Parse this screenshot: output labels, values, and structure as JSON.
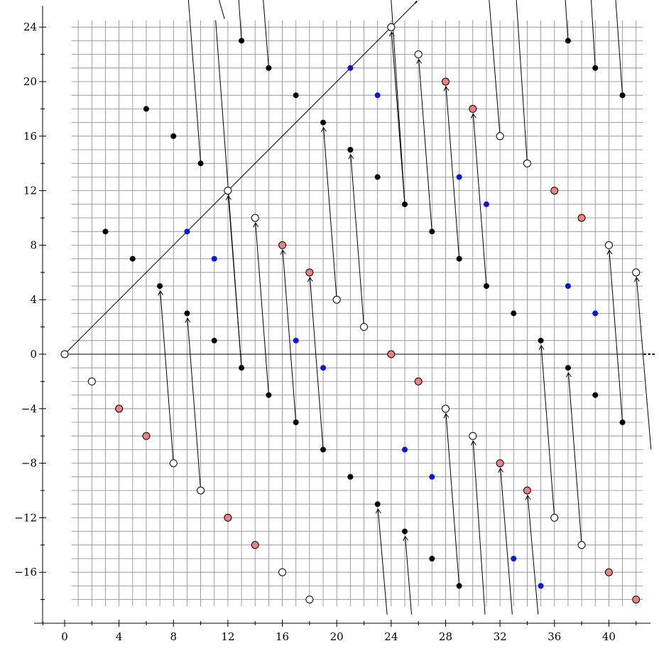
{
  "chart_data": {
    "type": "scatter",
    "title": "",
    "xlabel": "",
    "ylabel": "",
    "xlim": [
      -1.6,
      43.5
    ],
    "ylim": [
      -19.5,
      26
    ],
    "grid": true,
    "grid_x_range": [
      0.5,
      42.5
    ],
    "grid_y_range": [
      -18.5,
      24.5
    ],
    "x_ticks": [
      0,
      4,
      8,
      12,
      16,
      20,
      24,
      28,
      32,
      36,
      40
    ],
    "x_tick_labels": [
      "0",
      "4",
      "8",
      "12",
      "16",
      "20",
      "24",
      "28",
      "32",
      "36",
      "40"
    ],
    "y_ticks": [
      -16,
      -12,
      -8,
      -4,
      0,
      4,
      8,
      12,
      16,
      20,
      24
    ],
    "y_tick_labels": [
      "−16",
      "−12",
      "−8",
      "−4",
      "0",
      "4",
      "8",
      "12",
      "16",
      "20",
      "24"
    ],
    "colors": {
      "black": "#000000",
      "blue": "#0a14e6",
      "salmon": "#f08080",
      "white": "#ffffff",
      "grid": "#888888"
    },
    "series": [
      {
        "style": "black-filled",
        "points": [
          [
            3,
            9
          ],
          [
            5,
            7
          ],
          [
            6,
            18
          ],
          [
            7,
            5
          ],
          [
            8,
            16
          ],
          [
            9,
            3
          ],
          [
            10,
            14
          ],
          [
            11,
            1
          ],
          [
            13,
            23
          ],
          [
            13,
            -1
          ],
          [
            15,
            21
          ],
          [
            15,
            -3
          ],
          [
            17,
            19
          ],
          [
            17,
            -5
          ],
          [
            19,
            17
          ],
          [
            19,
            -7
          ],
          [
            21,
            15
          ],
          [
            21,
            -9
          ],
          [
            23,
            13
          ],
          [
            23,
            -11
          ],
          [
            25,
            11
          ],
          [
            25,
            -13
          ],
          [
            27,
            9
          ],
          [
            27,
            -15
          ],
          [
            29,
            7
          ],
          [
            29,
            -17
          ],
          [
            31,
            5
          ],
          [
            33,
            3
          ],
          [
            35,
            1
          ],
          [
            37,
            23
          ],
          [
            37,
            -1
          ],
          [
            39,
            21
          ],
          [
            39,
            -3
          ],
          [
            41,
            19
          ],
          [
            41,
            -5
          ]
        ]
      },
      {
        "style": "blue-filled",
        "points": [
          [
            9,
            9
          ],
          [
            11,
            7
          ],
          [
            17,
            1
          ],
          [
            19,
            -1
          ],
          [
            21,
            21
          ],
          [
            23,
            19
          ],
          [
            25,
            -7
          ],
          [
            27,
            -9
          ],
          [
            29,
            13
          ],
          [
            31,
            11
          ],
          [
            33,
            -15
          ],
          [
            35,
            -17
          ],
          [
            37,
            5
          ],
          [
            39,
            3
          ]
        ]
      },
      {
        "style": "salmon-outlined",
        "points": [
          [
            4,
            -4
          ],
          [
            6,
            -6
          ],
          [
            12,
            -12
          ],
          [
            14,
            -14
          ],
          [
            16,
            8
          ],
          [
            18,
            6
          ],
          [
            24,
            0
          ],
          [
            26,
            -2
          ],
          [
            28,
            20
          ],
          [
            30,
            18
          ],
          [
            32,
            -8
          ],
          [
            34,
            -10
          ],
          [
            36,
            12
          ],
          [
            38,
            10
          ],
          [
            40,
            -16
          ],
          [
            42,
            -18
          ]
        ]
      },
      {
        "style": "white-outlined",
        "points": [
          [
            0,
            0
          ],
          [
            2,
            -2
          ],
          [
            8,
            -8
          ],
          [
            10,
            -10
          ],
          [
            12,
            12
          ],
          [
            14,
            10
          ],
          [
            16,
            -16
          ],
          [
            18,
            -18
          ],
          [
            20,
            4
          ],
          [
            22,
            2
          ],
          [
            24,
            24
          ],
          [
            26,
            22
          ],
          [
            28,
            -4
          ],
          [
            30,
            -6
          ],
          [
            32,
            16
          ],
          [
            34,
            14
          ],
          [
            36,
            -12
          ],
          [
            38,
            -14
          ],
          [
            40,
            8
          ],
          [
            42,
            6
          ]
        ]
      }
    ],
    "diagonal_line": {
      "from": [
        0,
        0
      ],
      "to": [
        25.8,
        25.8
      ],
      "dotted_extension_to": [
        26.4,
        26.4
      ]
    },
    "horizontal_line": {
      "from": [
        0,
        0
      ],
      "to": [
        42.6,
        0
      ],
      "dotted_extension_to": [
        43.4,
        0
      ]
    },
    "arrows": [
      {
        "from": [
          8,
          -8
        ],
        "to": [
          7,
          5
        ]
      },
      {
        "from": [
          10,
          -10
        ],
        "to": [
          9,
          3
        ]
      },
      {
        "from": [
          13,
          -1
        ],
        "to": [
          12,
          12
        ]
      },
      {
        "from": [
          15,
          -3
        ],
        "to": [
          14,
          10
        ]
      },
      {
        "from": [
          17,
          -5
        ],
        "to": [
          16,
          8
        ]
      },
      {
        "from": [
          19,
          -7
        ],
        "to": [
          18,
          6
        ]
      },
      {
        "from": [
          20,
          4
        ],
        "to": [
          19,
          17
        ]
      },
      {
        "from": [
          22,
          2
        ],
        "to": [
          21,
          15
        ]
      },
      {
        "from": [
          25,
          11
        ],
        "to": [
          24,
          24
        ]
      },
      {
        "from": [
          27,
          9
        ],
        "to": [
          26,
          22
        ]
      },
      {
        "from": [
          29,
          7
        ],
        "to": [
          28,
          20
        ]
      },
      {
        "from": [
          31,
          5
        ],
        "to": [
          30,
          18
        ]
      },
      {
        "from": [
          36,
          -12
        ],
        "to": [
          35,
          1
        ]
      },
      {
        "from": [
          38,
          -14
        ],
        "to": [
          37,
          -1
        ]
      },
      {
        "from": [
          41,
          -5
        ],
        "to": [
          40,
          8
        ]
      },
      {
        "from": [
          43.1,
          -7
        ],
        "to": [
          42,
          6
        ]
      },
      {
        "from": [
          29,
          -17
        ],
        "to": [
          28,
          -4
        ]
      },
      {
        "from": [
          30.9,
          -19.1
        ],
        "to": [
          30,
          -6
        ]
      },
      {
        "from": [
          32.9,
          -19.1
        ],
        "to": [
          32,
          -8
        ]
      },
      {
        "from": [
          34.8,
          -19.1
        ],
        "to": [
          34,
          -10
        ]
      },
      {
        "from": [
          23.7,
          -19.1
        ],
        "to": [
          23,
          -11
        ]
      },
      {
        "from": [
          25.5,
          -19.1
        ],
        "to": [
          25,
          -13
        ]
      }
    ],
    "segments": [
      {
        "from": [
          10,
          14
        ],
        "to": [
          9.1,
          26
        ]
      },
      {
        "from": [
          11.35,
          26
        ],
        "to": [
          11.75,
          24.6
        ]
      },
      {
        "from": [
          13,
          23
        ],
        "to": [
          12.8,
          26
        ]
      },
      {
        "from": [
          15,
          21
        ],
        "to": [
          14.6,
          26
        ]
      },
      {
        "from": [
          25,
          11
        ],
        "to": [
          24,
          26
        ]
      },
      {
        "from": [
          32,
          16
        ],
        "to": [
          31.2,
          26
        ]
      },
      {
        "from": [
          34,
          14
        ],
        "to": [
          33.2,
          26
        ]
      },
      {
        "from": [
          37,
          23
        ],
        "to": [
          36.8,
          26
        ]
      },
      {
        "from": [
          39,
          21
        ],
        "to": [
          38.7,
          26
        ]
      },
      {
        "from": [
          41,
          19
        ],
        "to": [
          40.5,
          26
        ]
      },
      {
        "from": [
          13,
          -1
        ],
        "to": [
          11.1,
          24.5
        ]
      }
    ]
  }
}
